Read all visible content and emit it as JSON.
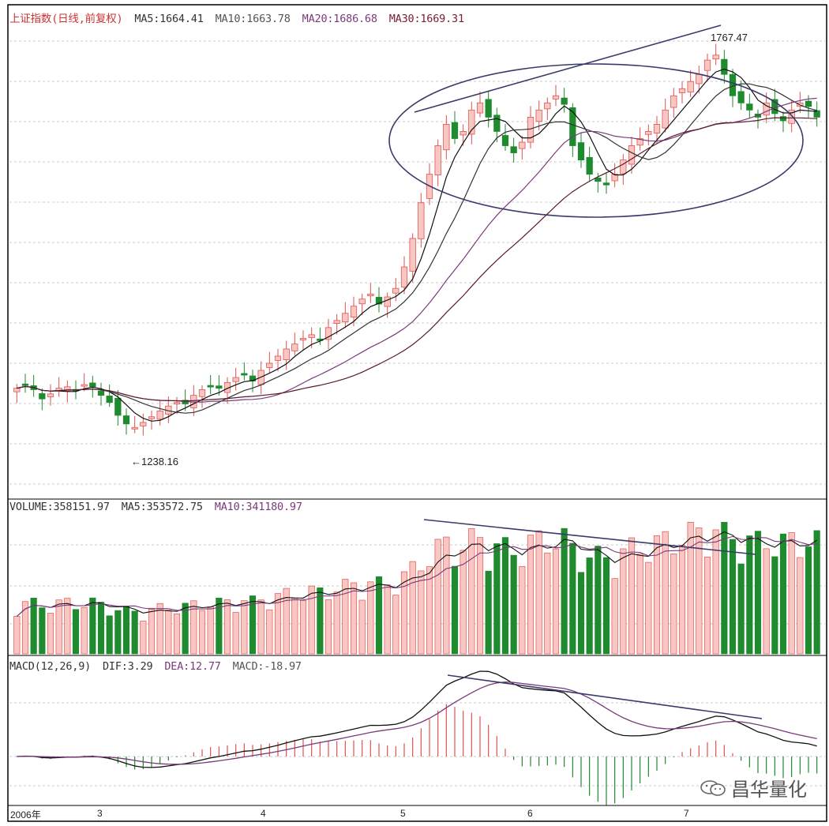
{
  "colors": {
    "up": "#e0524f",
    "up_fill": "#f8c7c3",
    "down": "#1f8a2e",
    "ma5": "#111111",
    "ma10": "#333333",
    "ma20": "#7a3a7a",
    "ma30": "#5a1a2a",
    "grid": "#bbbbbb"
  },
  "price_panel": {
    "title": "上证指数(日线,前复权)",
    "ma5": "MA5:1664.41",
    "ma10": "MA10:1663.78",
    "ma20": "MA20:1686.68",
    "ma30": "MA30:1669.31",
    "high_label": "1767.47",
    "low_label": "←1238.16"
  },
  "volume_panel": {
    "label": "VOLUME:358151.97",
    "ma5": "MA5:353572.75",
    "ma10": "MA10:341180.97"
  },
  "macd_panel": {
    "label": "MACD(12,26,9)",
    "dif": "DIF:3.29",
    "dea": "DEA:12.77",
    "macd": "MACD:-18.97"
  },
  "x_ticks": [
    "2006年",
    "3",
    "4",
    "5",
    "6",
    "7"
  ],
  "watermark": "昌华量化",
  "chart_data": {
    "type": "candlestick",
    "title": "上证指数(日线,前复权)",
    "x_ticks": [
      "2006年",
      "3",
      "4",
      "5",
      "6",
      "7"
    ],
    "price_range": [
      1180,
      1800
    ],
    "annotations": {
      "high": 1767.47,
      "low": 1238.16
    },
    "close_approx": [
      1300,
      1305,
      1298,
      1285,
      1292,
      1300,
      1302,
      1298,
      1305,
      1302,
      1290,
      1280,
      1262,
      1250,
      1245,
      1252,
      1260,
      1268,
      1275,
      1280,
      1278,
      1290,
      1298,
      1303,
      1300,
      1308,
      1315,
      1320,
      1310,
      1325,
      1335,
      1345,
      1355,
      1362,
      1370,
      1375,
      1368,
      1385,
      1395,
      1405,
      1415,
      1425,
      1432,
      1418,
      1428,
      1440,
      1470,
      1510,
      1560,
      1600,
      1640,
      1670,
      1650,
      1660,
      1690,
      1700,
      1680,
      1660,
      1640,
      1630,
      1645,
      1680,
      1690,
      1700,
      1710,
      1698,
      1640,
      1620,
      1600,
      1590,
      1585,
      1600,
      1620,
      1640,
      1650,
      1660,
      1670,
      1690,
      1710,
      1720,
      1730,
      1740,
      1760,
      1767,
      1740,
      1710,
      1700,
      1690,
      1680,
      1700,
      1685,
      1675,
      1690,
      1700,
      1695,
      1680
    ],
    "volume_range": [
      0,
      420000
    ],
    "volume_ma5": 353572.75,
    "volume_ma10": 341180.97,
    "macd": {
      "dif": 3.29,
      "dea": 12.77,
      "macd": -18.97
    }
  }
}
